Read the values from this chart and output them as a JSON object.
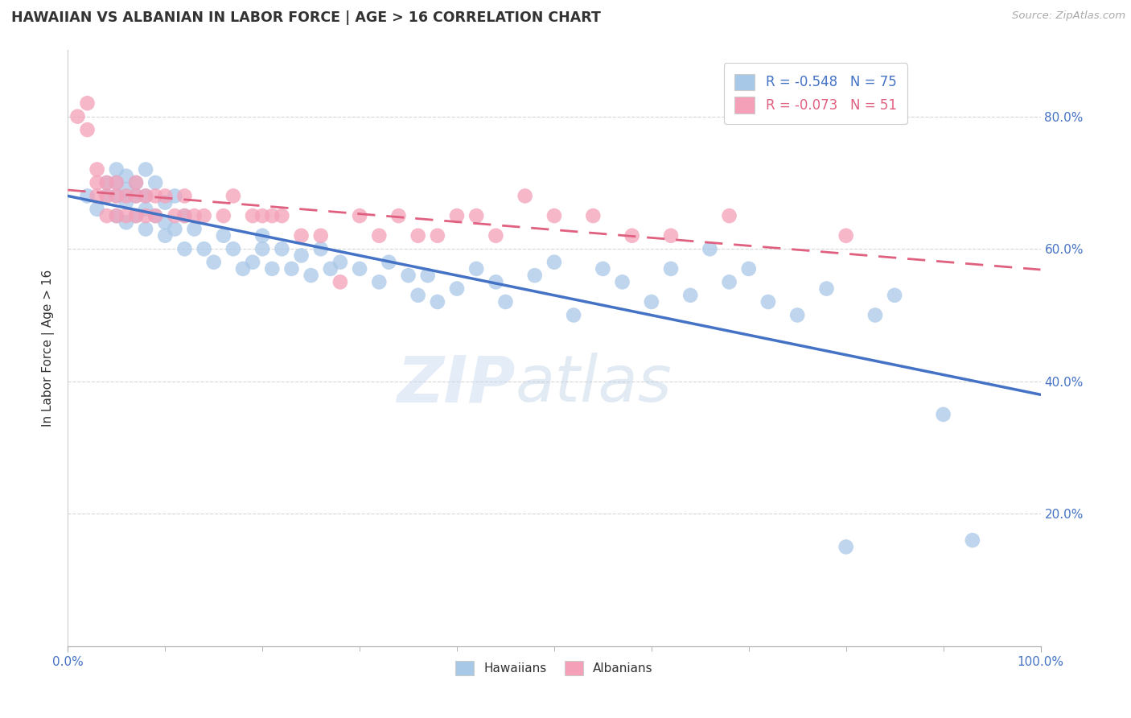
{
  "title": "HAWAIIAN VS ALBANIAN IN LABOR FORCE | AGE > 16 CORRELATION CHART",
  "source_text": "Source: ZipAtlas.com",
  "ylabel": "In Labor Force | Age > 16",
  "xlim": [
    0.0,
    1.0
  ],
  "ylim": [
    0.0,
    0.9
  ],
  "x_ticks": [
    0.0,
    1.0
  ],
  "x_tick_labels": [
    "0.0%",
    "100.0%"
  ],
  "y_ticks": [
    0.0,
    0.2,
    0.4,
    0.6,
    0.8
  ],
  "y_tick_labels_right": [
    "",
    "20.0%",
    "40.0%",
    "60.0%",
    "80.0%"
  ],
  "hawaiian_color": "#a8c8e8",
  "albanian_color": "#f4a0b8",
  "hawaiian_line_color": "#4472C4",
  "albanian_line_color": "#e06080",
  "legend_R_hawaiian": "R = -0.548",
  "legend_N_hawaiian": "N = 75",
  "legend_R_albanian": "R = -0.073",
  "legend_N_albanian": "N = 51",
  "watermark_zip": "ZIP",
  "watermark_atlas": "atlas",
  "background_color": "#ffffff",
  "grid_color": "#cccccc",
  "hawaiian_x": [
    0.02,
    0.03,
    0.04,
    0.04,
    0.05,
    0.05,
    0.05,
    0.05,
    0.06,
    0.06,
    0.06,
    0.06,
    0.07,
    0.07,
    0.07,
    0.08,
    0.08,
    0.08,
    0.08,
    0.09,
    0.09,
    0.1,
    0.1,
    0.1,
    0.11,
    0.11,
    0.12,
    0.12,
    0.13,
    0.14,
    0.15,
    0.16,
    0.17,
    0.18,
    0.19,
    0.2,
    0.2,
    0.21,
    0.22,
    0.23,
    0.24,
    0.25,
    0.26,
    0.27,
    0.28,
    0.3,
    0.32,
    0.33,
    0.35,
    0.36,
    0.37,
    0.38,
    0.4,
    0.42,
    0.44,
    0.45,
    0.48,
    0.5,
    0.52,
    0.55,
    0.57,
    0.6,
    0.62,
    0.64,
    0.66,
    0.68,
    0.7,
    0.72,
    0.75,
    0.78,
    0.8,
    0.83,
    0.85,
    0.9,
    0.93
  ],
  "hawaiian_y": [
    0.68,
    0.66,
    0.7,
    0.68,
    0.72,
    0.68,
    0.65,
    0.7,
    0.67,
    0.64,
    0.71,
    0.69,
    0.7,
    0.65,
    0.68,
    0.72,
    0.66,
    0.63,
    0.68,
    0.65,
    0.7,
    0.62,
    0.67,
    0.64,
    0.68,
    0.63,
    0.65,
    0.6,
    0.63,
    0.6,
    0.58,
    0.62,
    0.6,
    0.57,
    0.58,
    0.62,
    0.6,
    0.57,
    0.6,
    0.57,
    0.59,
    0.56,
    0.6,
    0.57,
    0.58,
    0.57,
    0.55,
    0.58,
    0.56,
    0.53,
    0.56,
    0.52,
    0.54,
    0.57,
    0.55,
    0.52,
    0.56,
    0.58,
    0.5,
    0.57,
    0.55,
    0.52,
    0.57,
    0.53,
    0.6,
    0.55,
    0.57,
    0.52,
    0.5,
    0.54,
    0.15,
    0.5,
    0.53,
    0.35,
    0.16
  ],
  "albanian_x": [
    0.01,
    0.02,
    0.02,
    0.03,
    0.03,
    0.03,
    0.04,
    0.04,
    0.04,
    0.05,
    0.05,
    0.05,
    0.06,
    0.06,
    0.07,
    0.07,
    0.07,
    0.08,
    0.08,
    0.09,
    0.09,
    0.1,
    0.11,
    0.12,
    0.12,
    0.13,
    0.14,
    0.16,
    0.17,
    0.19,
    0.2,
    0.21,
    0.22,
    0.24,
    0.26,
    0.28,
    0.3,
    0.32,
    0.34,
    0.36,
    0.38,
    0.4,
    0.42,
    0.44,
    0.47,
    0.5,
    0.54,
    0.58,
    0.62,
    0.68,
    0.8
  ],
  "albanian_y": [
    0.8,
    0.82,
    0.78,
    0.72,
    0.7,
    0.68,
    0.7,
    0.68,
    0.65,
    0.68,
    0.65,
    0.7,
    0.68,
    0.65,
    0.68,
    0.65,
    0.7,
    0.68,
    0.65,
    0.68,
    0.65,
    0.68,
    0.65,
    0.68,
    0.65,
    0.65,
    0.65,
    0.65,
    0.68,
    0.65,
    0.65,
    0.65,
    0.65,
    0.62,
    0.62,
    0.55,
    0.65,
    0.62,
    0.65,
    0.62,
    0.62,
    0.65,
    0.65,
    0.62,
    0.68,
    0.65,
    0.65,
    0.62,
    0.62,
    0.65,
    0.62
  ]
}
